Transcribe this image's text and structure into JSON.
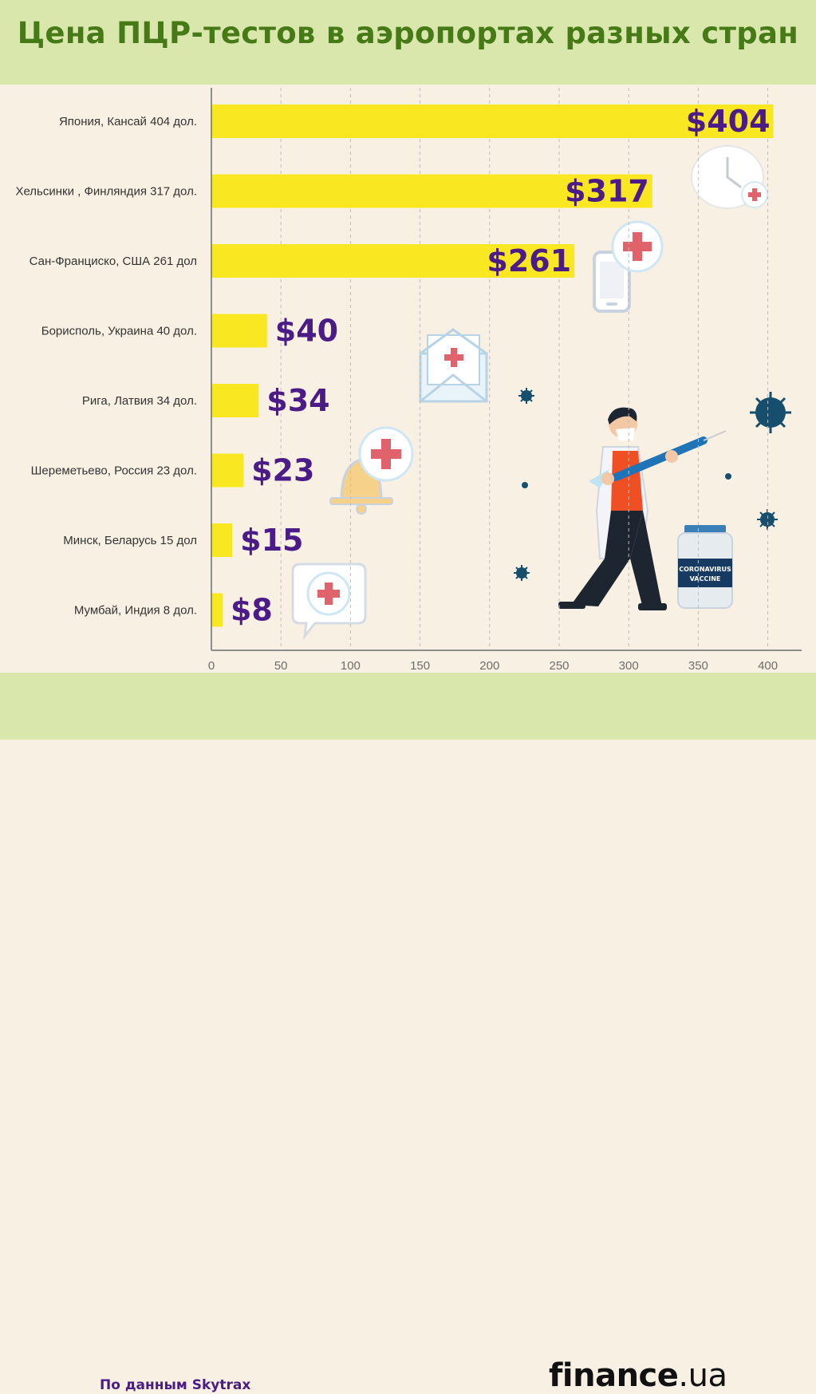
{
  "title": "Цена ПЦР-тестов в аэропортах разных стран",
  "footer": {
    "source": "По данным Skytrax",
    "brand_main": "finance",
    "brand_suffix": ".ua"
  },
  "illustration": {
    "vaccine_label_line1": "CORONAVIRUS",
    "vaccine_label_line2": "VACCINE"
  },
  "colors": {
    "bar": "#f9e821",
    "value_label": "#4b1c87",
    "title": "#467a16",
    "header_bg": "#d9e7ac",
    "bg": "#f8f0e3"
  },
  "chart_data": {
    "type": "bar",
    "orientation": "horizontal",
    "title": "Цена ПЦР-тестов в аэропортах разных стран",
    "categories": [
      "Япония, Кансай 404 дол.",
      "Хельсинки , Финляндия 317 дол.",
      "Сан-Франциско, США 261 дол",
      "Борисполь, Украина 40 дол.",
      "Рига, Латвия 34 дол.",
      "Шереметьево, Россия 23 дол.",
      "Минск, Беларусь 15 дол",
      "Мумбай, Индия 8 дол."
    ],
    "values": [
      404,
      317,
      261,
      40,
      34,
      23,
      15,
      8
    ],
    "value_labels": [
      "$404",
      "$317",
      "$261",
      "$40",
      "$34",
      "$23",
      "$15",
      "$8"
    ],
    "xlim": [
      0,
      420
    ],
    "xticks": [
      0,
      50,
      100,
      150,
      200,
      250,
      300,
      350,
      400
    ],
    "grid": "vertical dashed"
  }
}
